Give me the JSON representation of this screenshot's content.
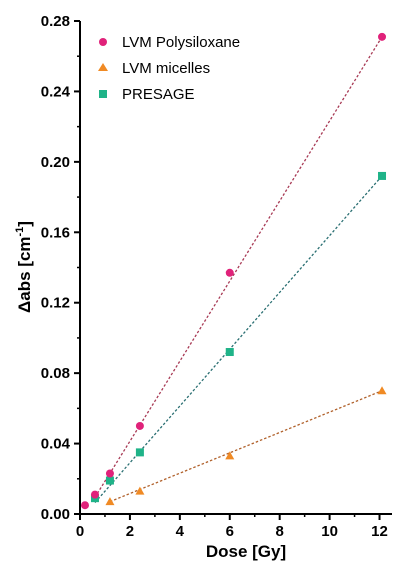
{
  "chart_data": {
    "type": "scatter",
    "xlabel": "Dose [Gy]",
    "ylabel": {
      "delta": "Δ",
      "main": "abs [cm",
      "sup": "-1",
      "close": "]"
    },
    "xlim": [
      0,
      12.5
    ],
    "ylim": [
      0,
      0.28
    ],
    "xticks": [
      "0",
      "2",
      "4",
      "6",
      "8",
      "10",
      "12"
    ],
    "yticks": [
      "0.00",
      "0.04",
      "0.08",
      "0.12",
      "0.16",
      "0.20",
      "0.24",
      "0.28"
    ],
    "grid": false,
    "legend_position": "top-left",
    "series": [
      {
        "name": "LVM Polysiloxane",
        "marker": "circle",
        "color": "#e0227a",
        "fit_color": "#a83a55",
        "x": [
          0.2,
          0.6,
          1.2,
          2.4,
          6.0,
          12.1
        ],
        "y": [
          0.005,
          0.011,
          0.023,
          0.05,
          0.137,
          0.271
        ],
        "fit": [
          0.6,
          0.0095,
          12.1,
          0.271
        ]
      },
      {
        "name": "LVM micelles",
        "marker": "triangle",
        "color": "#f08a24",
        "fit_color": "#b0602a",
        "x": [
          1.2,
          2.4,
          6.0,
          12.1
        ],
        "y": [
          0.007,
          0.013,
          0.033,
          0.07
        ],
        "fit": [
          1.2,
          0.007,
          12.1,
          0.07
        ]
      },
      {
        "name": "PRESAGE",
        "marker": "square",
        "color": "#1fb388",
        "fit_color": "#2a6f72",
        "x": [
          0.6,
          1.2,
          2.4,
          6.0,
          12.1
        ],
        "y": [
          0.009,
          0.019,
          0.035,
          0.092,
          0.192
        ],
        "fit": [
          0.6,
          0.0065,
          12.1,
          0.192
        ]
      }
    ]
  }
}
